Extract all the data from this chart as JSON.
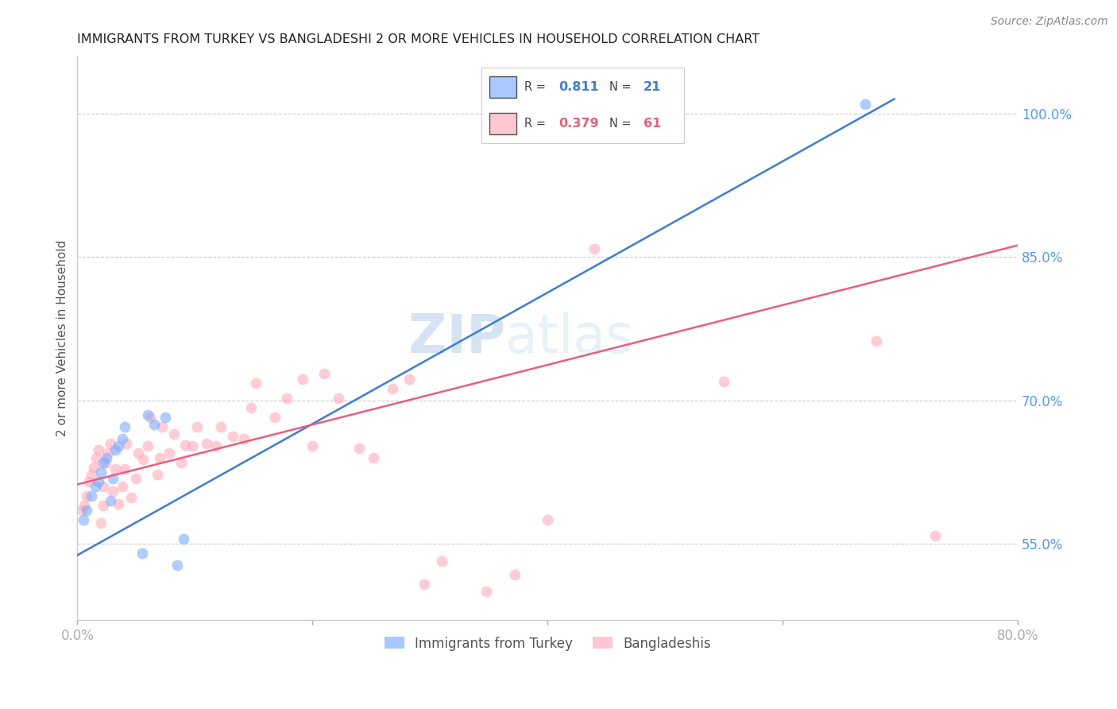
{
  "title": "IMMIGRANTS FROM TURKEY VS BANGLADESHI 2 OR MORE VEHICLES IN HOUSEHOLD CORRELATION CHART",
  "source": "Source: ZipAtlas.com",
  "tick_color": "#5599ff",
  "ylabel": "2 or more Vehicles in Household",
  "xlim": [
    0.0,
    0.8
  ],
  "ylim": [
    0.47,
    1.06
  ],
  "xticks": [
    0.0,
    0.2,
    0.4,
    0.6,
    0.8
  ],
  "xticklabels": [
    "0.0%",
    "",
    "",
    "",
    "80.0%"
  ],
  "yticks": [
    0.55,
    0.7,
    0.85,
    1.0
  ],
  "yticklabels": [
    "55.0%",
    "70.0%",
    "85.0%",
    "100.0%"
  ],
  "grid_color": "#cccccc",
  "background_color": "#ffffff",
  "watermark_zip": "ZIP",
  "watermark_atlas": "atlas",
  "blue_R": 0.811,
  "blue_N": 21,
  "pink_R": 0.379,
  "pink_N": 61,
  "blue_color": "#7aadff",
  "pink_color": "#ffaabb",
  "blue_line_color": "#3b7dd8",
  "pink_line_color": "#e8607a",
  "legend_label_blue": "Immigrants from Turkey",
  "legend_label_pink": "Bangladeshis",
  "blue_scatter_x": [
    0.005,
    0.008,
    0.012,
    0.015,
    0.018,
    0.02,
    0.022,
    0.025,
    0.028,
    0.03,
    0.032,
    0.035,
    0.038,
    0.04,
    0.055,
    0.06,
    0.065,
    0.075,
    0.085,
    0.09,
    0.67
  ],
  "blue_scatter_y": [
    0.575,
    0.585,
    0.6,
    0.61,
    0.615,
    0.625,
    0.635,
    0.64,
    0.595,
    0.618,
    0.648,
    0.652,
    0.66,
    0.672,
    0.54,
    0.685,
    0.675,
    0.682,
    0.528,
    0.555,
    1.01
  ],
  "pink_scatter_x": [
    0.004,
    0.006,
    0.008,
    0.01,
    0.012,
    0.014,
    0.016,
    0.018,
    0.02,
    0.022,
    0.022,
    0.024,
    0.026,
    0.028,
    0.03,
    0.032,
    0.035,
    0.038,
    0.04,
    0.042,
    0.046,
    0.05,
    0.052,
    0.056,
    0.06,
    0.062,
    0.068,
    0.07,
    0.072,
    0.078,
    0.082,
    0.088,
    0.092,
    0.098,
    0.102,
    0.11,
    0.118,
    0.122,
    0.132,
    0.142,
    0.148,
    0.152,
    0.168,
    0.178,
    0.192,
    0.2,
    0.21,
    0.222,
    0.24,
    0.252,
    0.268,
    0.282,
    0.295,
    0.31,
    0.348,
    0.372,
    0.4,
    0.44,
    0.55,
    0.68,
    0.73
  ],
  "pink_scatter_y": [
    0.585,
    0.59,
    0.6,
    0.615,
    0.622,
    0.63,
    0.64,
    0.648,
    0.572,
    0.59,
    0.61,
    0.635,
    0.645,
    0.655,
    0.605,
    0.628,
    0.592,
    0.61,
    0.628,
    0.655,
    0.598,
    0.618,
    0.645,
    0.638,
    0.652,
    0.682,
    0.622,
    0.64,
    0.672,
    0.645,
    0.665,
    0.635,
    0.653,
    0.652,
    0.672,
    0.655,
    0.652,
    0.672,
    0.662,
    0.66,
    0.692,
    0.718,
    0.682,
    0.702,
    0.722,
    0.652,
    0.728,
    0.702,
    0.65,
    0.64,
    0.712,
    0.722,
    0.508,
    0.532,
    0.5,
    0.518,
    0.575,
    0.858,
    0.72,
    0.762,
    0.558
  ],
  "blue_trend_x": [
    0.0,
    0.695
  ],
  "blue_trend_y": [
    0.538,
    1.015
  ],
  "pink_trend_x": [
    0.0,
    0.8
  ],
  "pink_trend_y": [
    0.612,
    0.862
  ]
}
